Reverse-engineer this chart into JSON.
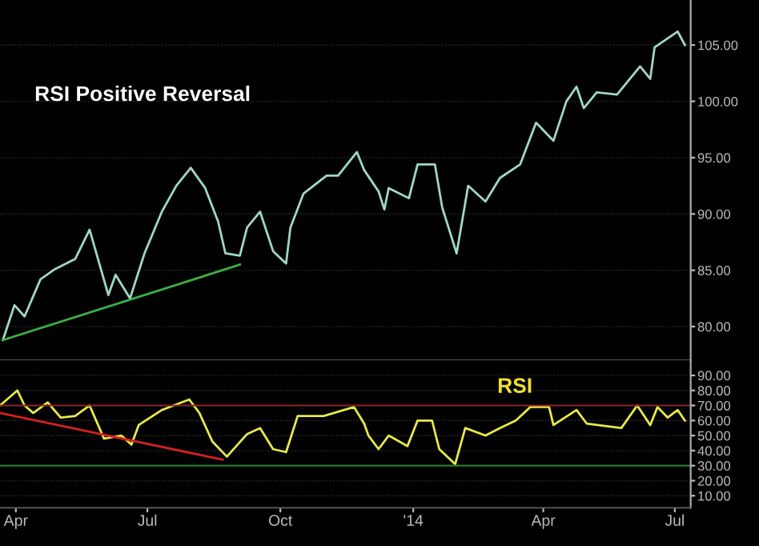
{
  "chart_data": [
    {
      "type": "line",
      "annotations": [
        "RSI Positive Reversal"
      ],
      "xlim": [
        "2013-03-21",
        "2014-07-12"
      ],
      "ylim": [
        77,
        109
      ],
      "yticks": [
        {
          "value": 80,
          "label": "80.00"
        },
        {
          "value": 85,
          "label": "85.00"
        },
        {
          "value": 90,
          "label": "90.00"
        },
        {
          "value": 95,
          "label": "95.00"
        },
        {
          "value": 100,
          "label": "100.00"
        },
        {
          "value": 105,
          "label": "105.00"
        }
      ],
      "grid": "y",
      "tick_labels": "y",
      "series": [
        {
          "color": "#9fd8c4",
          "x": [
            "2013-03-23",
            "2013-03-31",
            "2013-04-07",
            "2013-04-18",
            "2013-04-28",
            "2013-05-12",
            "2013-05-22",
            "2013-06-04",
            "2013-06-09",
            "2013-06-19",
            "2013-06-29",
            "2013-07-11",
            "2013-07-21",
            "2013-07-31",
            "2013-08-10",
            "2013-08-19",
            "2013-08-24",
            "2013-09-03",
            "2013-09-08",
            "2013-09-17",
            "2013-09-26",
            "2013-10-05",
            "2013-10-08",
            "2013-10-17",
            "2013-11-02",
            "2013-11-10",
            "2013-11-23",
            "2013-11-28",
            "2013-12-08",
            "2013-12-12",
            "2013-12-15",
            "2013-12-29",
            "2014-01-04",
            "2014-01-16",
            "2014-01-21",
            "2014-01-31",
            "2014-02-08",
            "2014-02-20",
            "2014-03-02",
            "2014-03-16",
            "2014-03-27",
            "2014-04-08",
            "2014-04-17",
            "2014-04-24",
            "2014-04-29",
            "2014-05-08",
            "2014-05-22",
            "2014-06-07",
            "2014-06-14",
            "2014-06-17",
            "2014-07-03",
            "2014-07-08"
          ],
          "values": [
            78.8,
            81.9,
            80.9,
            84.2,
            85.1,
            86.0,
            88.6,
            82.8,
            84.6,
            82.5,
            86.5,
            90.2,
            92.5,
            94.1,
            92.3,
            89.3,
            86.5,
            86.3,
            88.8,
            90.2,
            86.7,
            85.6,
            88.8,
            91.8,
            93.4,
            93.4,
            95.5,
            93.9,
            92.0,
            90.4,
            92.3,
            91.4,
            94.4,
            94.4,
            90.6,
            86.5,
            92.5,
            91.1,
            93.2,
            94.4,
            98.1,
            96.5,
            100.0,
            101.3,
            99.4,
            100.8,
            100.6,
            103.1,
            102.0,
            104.8,
            106.2,
            105.0
          ]
        },
        {
          "color": "#3cb043",
          "x": [
            "2013-03-23",
            "2013-09-03"
          ],
          "values": [
            78.8,
            85.5
          ]
        }
      ]
    },
    {
      "type": "line",
      "annotations": [
        "RSI"
      ],
      "xlim": [
        "2013-03-21",
        "2014-07-12"
      ],
      "ylim": [
        2,
        100
      ],
      "xticks": [
        {
          "value": "2013-04-01",
          "label": "Apr"
        },
        {
          "value": "2013-07-01",
          "label": "Jul"
        },
        {
          "value": "2013-10-01",
          "label": "Oct"
        },
        {
          "value": "2014-01-01",
          "label": "'14"
        },
        {
          "value": "2014-04-01",
          "label": "Apr"
        },
        {
          "value": "2014-07-01",
          "label": "Jul"
        }
      ],
      "yticks": [
        {
          "value": 10,
          "label": "10.00"
        },
        {
          "value": 20,
          "label": "20.00"
        },
        {
          "value": 30,
          "label": "30.00"
        },
        {
          "value": 40,
          "label": "40.00"
        },
        {
          "value": 50,
          "label": "50.00"
        },
        {
          "value": 60,
          "label": "60.00"
        },
        {
          "value": 70,
          "label": "70.00"
        },
        {
          "value": 80,
          "label": "80.00"
        },
        {
          "value": 90,
          "label": "90.00"
        }
      ],
      "grid": "y",
      "ref_lines": [
        {
          "axis": "y",
          "value": 70,
          "color": "#8a2424"
        },
        {
          "axis": "y",
          "value": 30,
          "color": "#2f7a2f"
        }
      ],
      "series": [
        {
          "color": "#e8e84a",
          "x": [
            "2013-03-21",
            "2013-04-02",
            "2013-04-07",
            "2013-04-13",
            "2013-04-23",
            "2013-05-02",
            "2013-05-12",
            "2013-05-22",
            "2013-06-01",
            "2013-06-13",
            "2013-06-20",
            "2013-06-25",
            "2013-07-11",
            "2013-07-30",
            "2013-08-06",
            "2013-08-15",
            "2013-08-25",
            "2013-09-08",
            "2013-09-17",
            "2013-09-26",
            "2013-10-05",
            "2013-10-13",
            "2013-10-31",
            "2013-11-21",
            "2013-11-28",
            "2013-12-01",
            "2013-12-08",
            "2013-12-15",
            "2013-12-28",
            "2014-01-04",
            "2014-01-14",
            "2014-01-19",
            "2014-01-30",
            "2014-02-06",
            "2014-02-20",
            "2014-03-02",
            "2014-03-13",
            "2014-03-23",
            "2014-04-05",
            "2014-04-08",
            "2014-04-24",
            "2014-05-01",
            "2014-05-25",
            "2014-06-05",
            "2014-06-14",
            "2014-06-19",
            "2014-06-26",
            "2014-07-03",
            "2014-07-08"
          ],
          "values": [
            70,
            80,
            70,
            65,
            72,
            62,
            63,
            70,
            48,
            50,
            44,
            57,
            67,
            74,
            65,
            46,
            36,
            51,
            55,
            41,
            39,
            63,
            63,
            69,
            58,
            50,
            41,
            50,
            43,
            60,
            60,
            41,
            31,
            55,
            50,
            55,
            60,
            69,
            69,
            57,
            67,
            58,
            55,
            70,
            57,
            69,
            62,
            67,
            60
          ]
        },
        {
          "color": "#d42020",
          "x": [
            "2013-03-21",
            "2013-08-22"
          ],
          "values": [
            65,
            34
          ]
        }
      ]
    }
  ]
}
